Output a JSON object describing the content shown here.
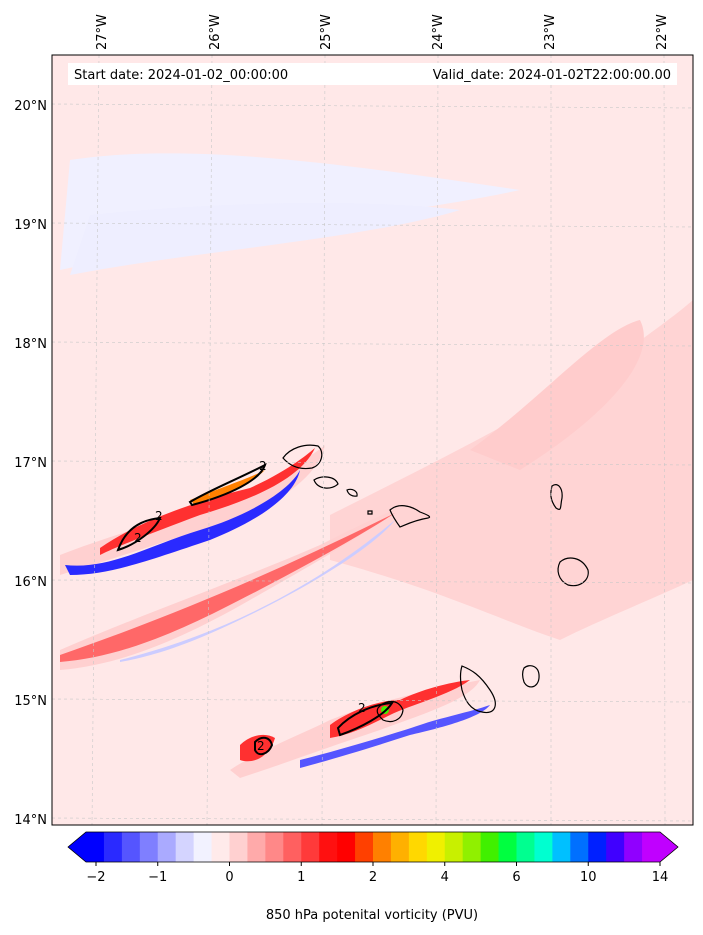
{
  "header": {
    "start_label": "Start date: 2024-01-02_00:00:00",
    "valid_label": "Valid_date: 2024-01-02T22:00:00.00"
  },
  "axes": {
    "lon_labels": [
      "27°W",
      "26°W",
      "25°W",
      "24°W",
      "23°W",
      "22°W"
    ],
    "lat_labels": [
      "20°N",
      "19°N",
      "18°N",
      "17°N",
      "16°N",
      "15°N",
      "14°N"
    ]
  },
  "colorbar": {
    "label": "850 hPa potenital vorticity (PVU)",
    "tick_labels": [
      "−2",
      "−1",
      "0",
      "1",
      "2",
      "4",
      "6",
      "10",
      "14"
    ],
    "colors": [
      "#0000ff",
      "#2a2aff",
      "#5555ff",
      "#7f7fff",
      "#aaaaff",
      "#d4d4ff",
      "#f2f2ff",
      "#ffeaea",
      "#ffd0d0",
      "#ffaaaa",
      "#ff8888",
      "#ff6060",
      "#ff3a3a",
      "#ff1010",
      "#ff0000",
      "#ff4000",
      "#ff8000",
      "#ffb000",
      "#ffd800",
      "#f0f000",
      "#c8f000",
      "#90f000",
      "#40f000",
      "#00ff40",
      "#00ff90",
      "#00ffd0",
      "#00c0ff",
      "#0070ff",
      "#0020ff",
      "#4000ff",
      "#9000ff",
      "#c000ff"
    ],
    "left_arrow_color": "#0000ff",
    "right_arrow_color": "#c000ff"
  },
  "contour_labels": [
    "2",
    "2",
    "2",
    "2",
    "2"
  ],
  "colors": {
    "background_field": "#ffe8e8",
    "light_red": "#ffd2d2",
    "mid_red": "#ff9090",
    "red": "#ff3030",
    "orange": "#ff8000",
    "blue": "#3030ff",
    "light_blue": "#d8d8ff",
    "coast": "#000000",
    "green": "#40f000"
  }
}
